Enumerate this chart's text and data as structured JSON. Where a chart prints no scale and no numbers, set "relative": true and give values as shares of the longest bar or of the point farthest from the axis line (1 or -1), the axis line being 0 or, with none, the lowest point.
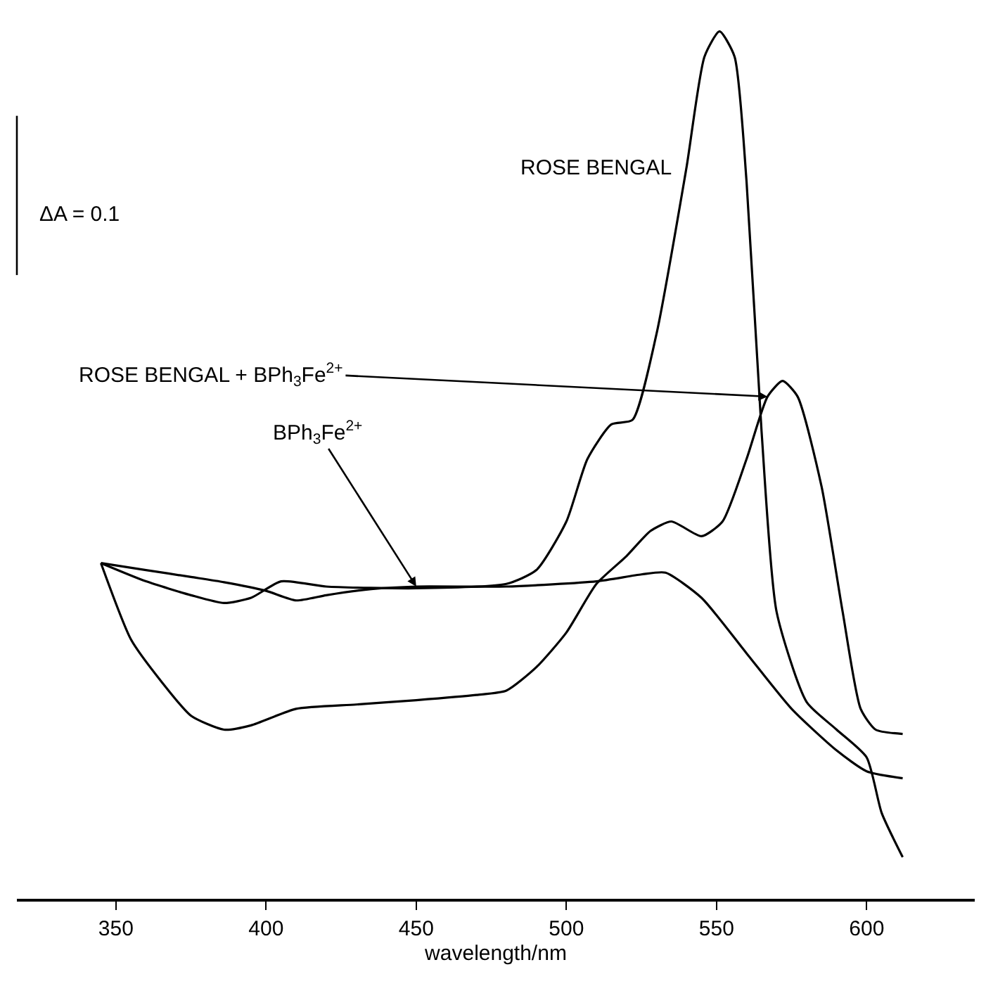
{
  "chart_data": {
    "type": "line",
    "relative": true,
    "xlabel": "wavelength/nm",
    "xlim": [
      317,
      636
    ],
    "xticks": [
      350,
      400,
      450,
      500,
      550,
      600
    ],
    "grid": false,
    "legend": false,
    "marker": "none",
    "line_style": "solid",
    "annotations": [
      "ΔA = 0.1"
    ],
    "series": [
      {
        "name": "ROSE BENGAL",
        "color": "#000000",
        "x": [
          345,
          360,
          375,
          386,
          395,
          405,
          420,
          450,
          480,
          490,
          500,
          507,
          515,
          522,
          530,
          540,
          546,
          551,
          556,
          560,
          565,
          570,
          580,
          590,
          600,
          605,
          612
        ],
        "values": [
          0.387,
          0.366,
          0.35,
          0.341,
          0.347,
          0.366,
          0.36,
          0.358,
          0.363,
          0.379,
          0.435,
          0.507,
          0.547,
          0.552,
          0.651,
          0.843,
          0.971,
          1.0,
          0.971,
          0.827,
          0.539,
          0.331,
          0.227,
          0.195,
          0.163,
          0.099,
          0.048
        ]
      },
      {
        "name": "ROSE BENGAL + BPh$_{3}$Fe$^{2+}$",
        "color": "#000000",
        "x": [
          345,
          355,
          365,
          375,
          386,
          395,
          410,
          430,
          450,
          470,
          480,
          490,
          500,
          510,
          520,
          528,
          535,
          545,
          552,
          560,
          567,
          572,
          577,
          585,
          592,
          598,
          603,
          612
        ],
        "values": [
          0.387,
          0.299,
          0.251,
          0.211,
          0.195,
          0.2,
          0.219,
          0.224,
          0.229,
          0.235,
          0.24,
          0.267,
          0.307,
          0.363,
          0.395,
          0.424,
          0.435,
          0.418,
          0.435,
          0.507,
          0.579,
          0.597,
          0.579,
          0.475,
          0.331,
          0.219,
          0.195,
          0.19
        ]
      },
      {
        "name": "BPh$_{3}$Fe$^{2+}$",
        "color": "#000000",
        "x": [
          345,
          360,
          375,
          386,
          400,
          410,
          420,
          435,
          450,
          480,
          510,
          525,
          533,
          545,
          560,
          575,
          590,
          600,
          612
        ],
        "values": [
          0.387,
          0.379,
          0.371,
          0.365,
          0.355,
          0.344,
          0.35,
          0.357,
          0.36,
          0.36,
          0.366,
          0.374,
          0.376,
          0.347,
          0.283,
          0.219,
          0.171,
          0.147,
          0.139
        ]
      }
    ]
  }
}
